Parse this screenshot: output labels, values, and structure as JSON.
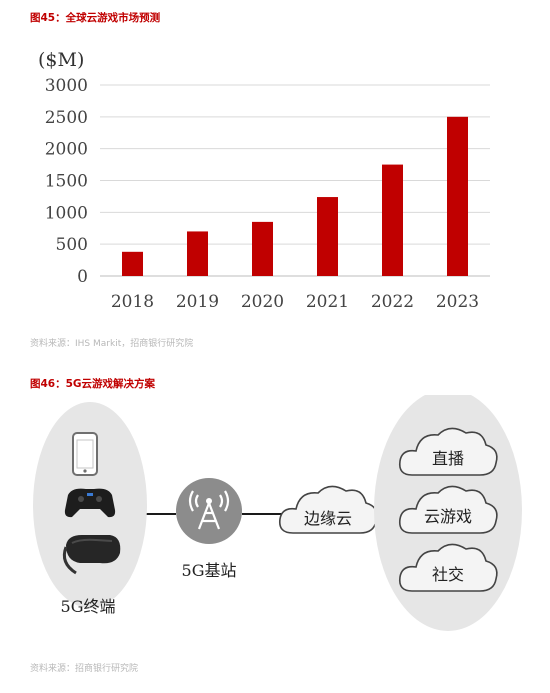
{
  "figure45": {
    "title": "图45：全球云游戏市场预测",
    "source": "资料来源：IHS Markit，招商银行研究院"
  },
  "chart_data": {
    "type": "bar",
    "title": "",
    "unit": "($M)",
    "categories": [
      "2018",
      "2019",
      "2020",
      "2021",
      "2022",
      "2023"
    ],
    "values": [
      380,
      700,
      850,
      1240,
      1750,
      2500
    ],
    "ylim": [
      0,
      3000
    ],
    "yticks": [
      0,
      500,
      1000,
      1500,
      2000,
      2500,
      3000
    ],
    "grid": true,
    "bar_color": "#c00000"
  },
  "figure46": {
    "title": "图46：5G云游戏解决方案",
    "source": "资料来源：招商银行研究院",
    "terminal_label": "5G终端",
    "base_station_label": "5G基站",
    "edge_cloud_label": "边缘云",
    "services": [
      "直播",
      "云游戏",
      "社交"
    ],
    "devices": [
      "phone-icon",
      "gamepad-icon",
      "vr-headset-icon"
    ],
    "colors": {
      "ellipse_fill": "#e6e6e6",
      "station_fill": "#8c8c8c",
      "line": "#1a1a1a"
    }
  }
}
